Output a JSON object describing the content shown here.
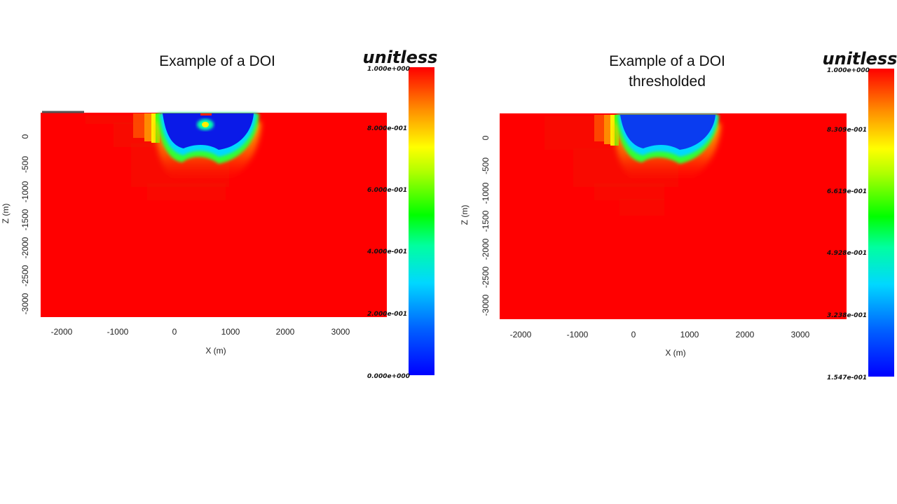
{
  "slide": {
    "left_title": "Example of a DOI",
    "right_title_line1": "Example of a DOI",
    "right_title_line2": "thresholded"
  },
  "chart_data": [
    {
      "type": "heatmap",
      "title": "Example of a DOI",
      "xlabel": "X (m)",
      "ylabel": "Z (m)",
      "xlim": [
        -2400,
        3800
      ],
      "ylim": [
        -3250,
        400
      ],
      "x_ticks": [
        "-2000",
        "-1000",
        "0",
        "1000",
        "2000",
        "3000"
      ],
      "y_ticks": [
        "0",
        "-500",
        "-1000",
        "-1500",
        "-2000",
        "-2500",
        "-3000"
      ],
      "colorbar": {
        "title": "unitless",
        "min": 0.0,
        "max": 1.0,
        "labels": [
          "1.000e+000",
          "8.000e-001",
          "6.000e-001",
          "4.000e-001",
          "2.000e-001",
          "0.000e+000"
        ]
      },
      "background_value": 1.0,
      "anomaly": {
        "value": 0.05,
        "x_range": [
          -300,
          1450
        ],
        "depth_min": -700
      }
    },
    {
      "type": "heatmap",
      "title": "Example of a DOI thresholded",
      "xlabel": "X (m)",
      "ylabel": "Z (m)",
      "xlim": [
        -2400,
        3800
      ],
      "ylim": [
        -3250,
        400
      ],
      "x_ticks": [
        "-2000",
        "-1000",
        "0",
        "1000",
        "2000",
        "3000"
      ],
      "y_ticks": [
        "0",
        "-500",
        "-1000",
        "-1500",
        "-2000",
        "-2500",
        "-3000"
      ],
      "colorbar": {
        "title": "unitless",
        "min": 0.1547,
        "max": 1.0,
        "labels": [
          "1.000e+000",
          "8.309e-001",
          "6.619e-001",
          "4.928e-001",
          "3.238e-001",
          "1.547e-001"
        ]
      },
      "background_value": 1.0,
      "anomaly": {
        "value": 0.1547,
        "x_range": [
          -200,
          1450
        ],
        "depth_min": -600
      }
    }
  ]
}
